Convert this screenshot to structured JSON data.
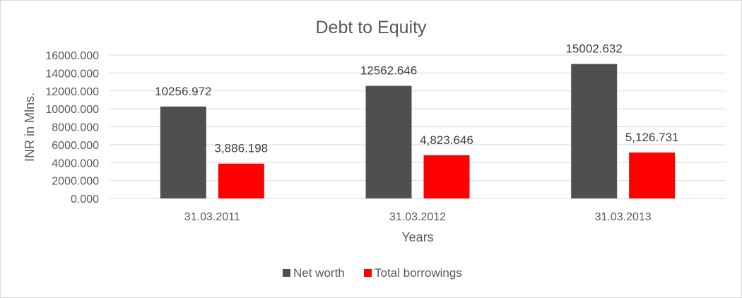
{
  "chart_data": {
    "type": "bar",
    "title": "Debt to Equity",
    "xlabel": "Years",
    "ylabel": "INR in Mlns.",
    "categories": [
      "31.03.2011",
      "31.03.2012",
      "31.03.2013"
    ],
    "series": [
      {
        "name": "Net worth",
        "color": "#4f4f4f",
        "values": [
          10256.972,
          12562.646,
          15002.632
        ],
        "labels": [
          "10256.972",
          "12562.646",
          "15002.632"
        ]
      },
      {
        "name": "Total borrowings",
        "color": "#ff0000",
        "values": [
          3886.198,
          4823.646,
          5126.731
        ],
        "labels": [
          "3,886.198",
          "4,823.646",
          "5,126.731"
        ]
      }
    ],
    "ylim": [
      0,
      16000
    ],
    "yticks": [
      "0.000",
      "2000.000",
      "4000.000",
      "6000.000",
      "8000.000",
      "10000.000",
      "12000.000",
      "14000.000",
      "16000.000"
    ],
    "grid": true,
    "legend_position": "bottom"
  }
}
